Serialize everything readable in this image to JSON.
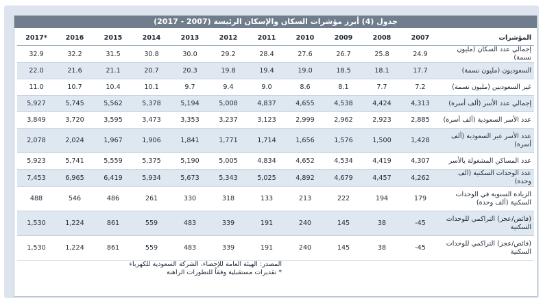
{
  "table": {
    "title": "جدول (4) أبرز مؤشرات السكان والإسكان الرئيسة (2007 - 2017)",
    "header_label": "المؤشرات",
    "years": [
      "2007",
      "2008",
      "2009",
      "2010",
      "2011",
      "2012",
      "2013",
      "2014",
      "2015",
      "2016",
      "2017*"
    ],
    "rows": [
      {
        "label": "إجمالي عدد السكان (مليون نسمة)",
        "values": [
          "24.9",
          "25.8",
          "26.7",
          "27.6",
          "28.4",
          "29.2",
          "30.0",
          "30.8",
          "31.5",
          "32.2",
          "32.9"
        ]
      },
      {
        "label": "السعوديون (مليون نسمة)",
        "values": [
          "17.7",
          "18.1",
          "18.5",
          "19.0",
          "19.4",
          "19.8",
          "20.3",
          "20.7",
          "21.1",
          "21.6",
          "22.0"
        ]
      },
      {
        "label": "غير السعوديين (مليون نسمة)",
        "values": [
          "7.2",
          "7.7",
          "8.1",
          "8.6",
          "9.0",
          "9.4",
          "9.7",
          "10.1",
          "10.4",
          "10.7",
          "11.0"
        ]
      },
      {
        "label": "إجمالي عدد الأسر (ألف أسرة)",
        "values": [
          "4,313",
          "4,424",
          "4,538",
          "4,655",
          "4,837",
          "5,008",
          "5,194",
          "5,378",
          "5,562",
          "5,745",
          "5,927"
        ]
      },
      {
        "label": "عدد الأسر السعودية (ألف أسرة)",
        "values": [
          "2,885",
          "2,923",
          "2,962",
          "2,999",
          "3,123",
          "3,237",
          "3,353",
          "3,473",
          "3,595",
          "3,720",
          "3,849"
        ]
      },
      {
        "label": "عدد الأسر غير السعودية (ألف أسرة)",
        "values": [
          "1,428",
          "1,500",
          "1,576",
          "1,656",
          "1,714",
          "1,771",
          "1,841",
          "1,906",
          "1,967",
          "2,024",
          "2,078"
        ]
      },
      {
        "label": "عدد المساكن المشغولة بالأسر",
        "values": [
          "4,307",
          "4,419",
          "4,534",
          "4,652",
          "4,834",
          "5,005",
          "5,190",
          "5,375",
          "5,559",
          "5,741",
          "5,923"
        ]
      },
      {
        "label": "عدد الوحدات السكنية (ألف وحدة)",
        "values": [
          "4,262",
          "4,457",
          "4,679",
          "4,892",
          "5,025",
          "5,343",
          "5,673",
          "5,934",
          "6,419",
          "6,965",
          "7,453"
        ]
      },
      {
        "label": "الزيادة السنوية في الوحدات السكنية (ألف وحدة)",
        "values": [
          "179",
          "194",
          "222",
          "213",
          "133",
          "318",
          "330",
          "261",
          "486",
          "546",
          "488"
        ]
      },
      {
        "label": "(فائض/عجز) التراكمي للوحدات السكنية",
        "values": [
          "-45",
          "38",
          "145",
          "240",
          "191",
          "339",
          "483",
          "559",
          "861",
          "1,224",
          "1,530"
        ]
      },
      {
        "label": "(فائض/عجز) التراكمي للوحدات السكنية",
        "values": [
          "-45",
          "38",
          "145",
          "240",
          "191",
          "339",
          "483",
          "559",
          "861",
          "1,224",
          "1,530"
        ]
      }
    ]
  },
  "footer": {
    "source": "المصدر: الهيئة العامة للإحصاء، الشركة السعودية للكهرباء",
    "note": "* تقديرات مستقبلية وفقاً للتطورات الراهنة"
  }
}
